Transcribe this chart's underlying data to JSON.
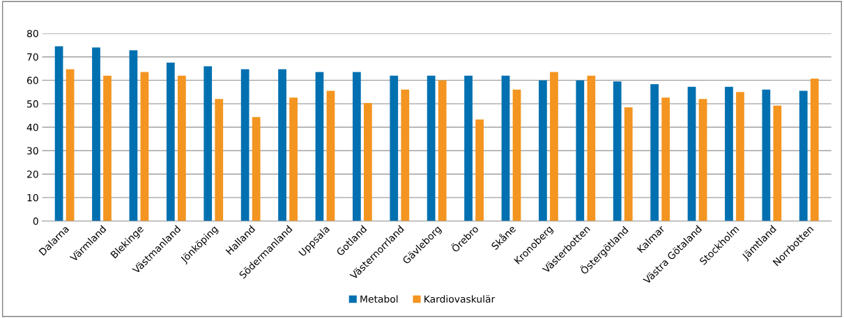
{
  "chart_data": {
    "type": "bar",
    "categories": [
      "Dalarna",
      "Värmland",
      "Blekinge",
      "Västmanland",
      "Jönköping",
      "Halland",
      "Södermanland",
      "Uppsala",
      "Gotland",
      "Västernorrland",
      "Gävleborg",
      "Örebro",
      "Skåne",
      "Kronoberg",
      "Västerbotten",
      "Östergötland",
      "Kalmar",
      "Västra Götaland",
      "Stockholm",
      "Jämtland",
      "Norrbotten"
    ],
    "series": [
      {
        "name": "Metabol",
        "color": "#0070b0",
        "values": [
          74.5,
          74,
          72.8,
          67.5,
          66,
          64.7,
          64.7,
          63.5,
          63.5,
          62,
          62,
          62,
          62,
          60,
          60,
          59.5,
          58.3,
          57.2,
          57.2,
          56,
          55.5
        ]
      },
      {
        "name": "Kardiovaskulär",
        "color": "#f39520",
        "values": [
          64.7,
          62,
          63.5,
          62,
          52,
          44.3,
          52.6,
          55.5,
          50.3,
          56,
          60,
          43.3,
          56,
          63.5,
          62,
          48.5,
          52.6,
          52,
          55,
          49.2,
          60.7
        ]
      }
    ],
    "ylim": [
      0,
      80
    ],
    "yticks": [
      0,
      10,
      20,
      30,
      40,
      50,
      60,
      70,
      80
    ],
    "grid": "y",
    "legend": "bottom"
  }
}
